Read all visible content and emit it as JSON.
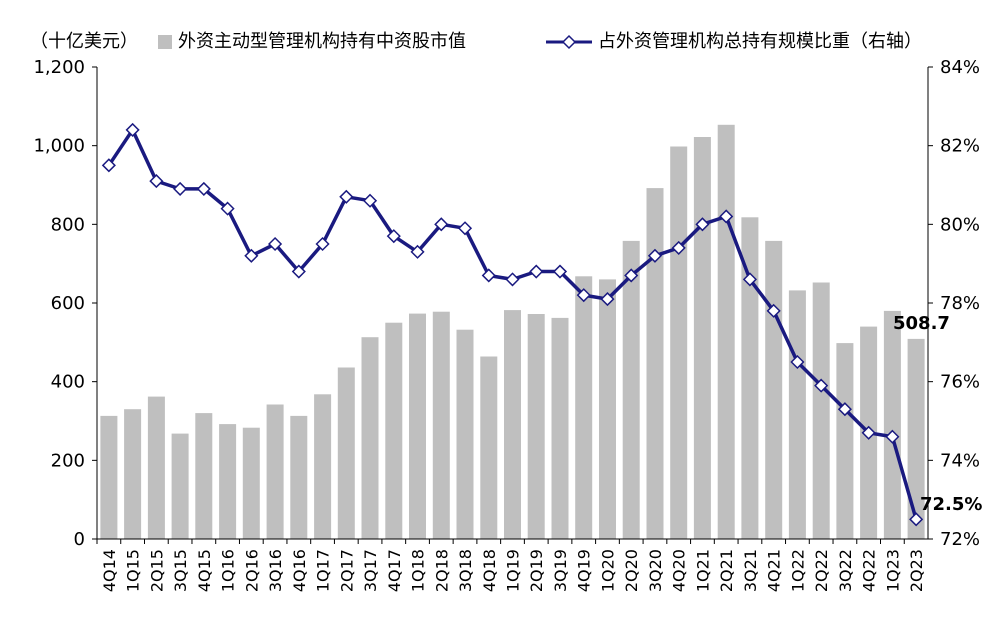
{
  "chart_data": {
    "type": "bar+line",
    "y_unit_label": "（十亿美元）",
    "categories": [
      "4Q14",
      "1Q15",
      "2Q15",
      "3Q15",
      "4Q15",
      "1Q16",
      "2Q16",
      "3Q16",
      "4Q16",
      "1Q17",
      "2Q17",
      "3Q17",
      "4Q17",
      "1Q18",
      "2Q18",
      "3Q18",
      "4Q18",
      "1Q19",
      "2Q19",
      "3Q19",
      "4Q19",
      "1Q20",
      "2Q20",
      "3Q20",
      "4Q20",
      "1Q21",
      "2Q21",
      "3Q21",
      "4Q21",
      "1Q22",
      "2Q22",
      "3Q22",
      "4Q22",
      "1Q23",
      "2Q23"
    ],
    "series": [
      {
        "name": "外资主动型管理机构持有中资股市值",
        "type": "bar",
        "axis": "left",
        "color": "#bfbfbf",
        "values": [
          313,
          330,
          362,
          268,
          320,
          292,
          283,
          342,
          313,
          368,
          436,
          513,
          550,
          573,
          578,
          532,
          464,
          582,
          572,
          562,
          668,
          660,
          758,
          892,
          998,
          1022,
          1053,
          818,
          758,
          632,
          652,
          498,
          540,
          580,
          508.7
        ]
      },
      {
        "name": "占外资管理机构总持有规模比重（右轴）",
        "type": "line",
        "axis": "right",
        "color": "#1a1a80",
        "values": [
          81.5,
          82.4,
          81.1,
          80.9,
          80.9,
          80.4,
          79.2,
          79.5,
          78.8,
          79.5,
          80.7,
          80.6,
          79.7,
          79.3,
          80.0,
          79.9,
          78.7,
          78.6,
          78.8,
          78.8,
          78.2,
          78.1,
          78.7,
          79.2,
          79.4,
          80.0,
          80.2,
          78.6,
          77.8,
          76.5,
          75.9,
          75.3,
          74.7,
          74.6,
          72.5
        ]
      }
    ],
    "ylim_left": [
      0,
      1200
    ],
    "yticks_left": [
      "0",
      "200",
      "400",
      "600",
      "800",
      "1,000",
      "1,200"
    ],
    "ylim_right": [
      72,
      84
    ],
    "yticks_right": [
      "72%",
      "74%",
      "76%",
      "78%",
      "80%",
      "82%",
      "84%"
    ],
    "annotations": {
      "last_bar_label": "508.7",
      "last_line_label": "72.5%"
    },
    "grid": false,
    "legend_position": "top"
  }
}
